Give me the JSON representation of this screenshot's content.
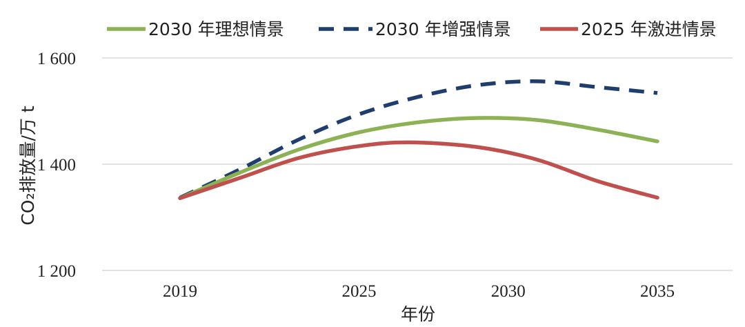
{
  "chart_data": {
    "type": "line",
    "x": [
      2019,
      2025,
      2030,
      2035
    ],
    "xlabel": "年份",
    "ylabel": "CO₂排放量/万 t",
    "ylim": [
      1200,
      1600
    ],
    "y_ticks": [
      1200,
      1400,
      1600
    ],
    "y_tick_labels": [
      "1 200",
      "1 400",
      "1 600"
    ],
    "x_tick_labels": [
      "2019",
      "2025",
      "2030",
      "2035"
    ],
    "grid": "horizontal",
    "legend_position": "top",
    "series": [
      {
        "name": "2030 年理想情景",
        "color": "#8db255",
        "style": "solid",
        "x": [
          2019,
          2021,
          2023,
          2025,
          2027,
          2029,
          2031,
          2033,
          2035
        ],
        "values": [
          1336,
          1384,
          1428,
          1460,
          1479,
          1487,
          1483,
          1465,
          1443
        ]
      },
      {
        "name": "2030 年增强情景",
        "color": "#1f3e6e",
        "style": "dashed",
        "x": [
          2019,
          2021,
          2023,
          2025,
          2027,
          2029,
          2031,
          2033,
          2035
        ],
        "values": [
          1337,
          1390,
          1447,
          1494,
          1527,
          1549,
          1556,
          1545,
          1534
        ]
      },
      {
        "name": "2025 年激进情景",
        "color": "#c0504d",
        "style": "solid",
        "x": [
          2019,
          2021,
          2023,
          2025,
          2026.7,
          2029,
          2031,
          2033,
          2035
        ],
        "values": [
          1336,
          1374,
          1412,
          1434,
          1441,
          1432,
          1408,
          1368,
          1337
        ]
      }
    ]
  }
}
